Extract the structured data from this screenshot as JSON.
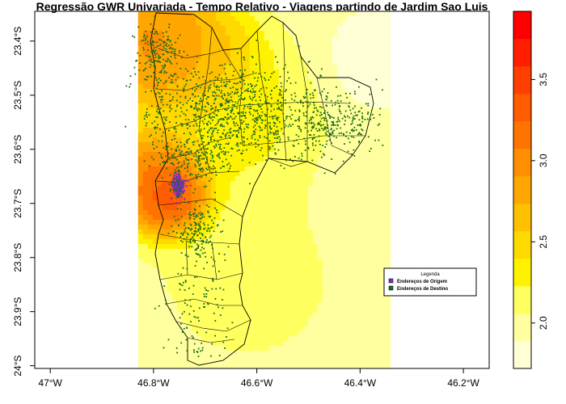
{
  "title": "Regressão GWR Univariada - Tempo Relativo - Viagens partindo de Jardim Sao Luis",
  "chart_data": {
    "type": "heatmap",
    "x_ticks": [
      {
        "value": -47.0,
        "label": "47°W"
      },
      {
        "value": -46.8,
        "label": "46.8°W"
      },
      {
        "value": -46.6,
        "label": "46.6°W"
      },
      {
        "value": -46.4,
        "label": "46.4°W"
      },
      {
        "value": -46.2,
        "label": "46.2°W"
      }
    ],
    "y_ticks": [
      {
        "value": -23.4,
        "label": "23.4°S"
      },
      {
        "value": -23.5,
        "label": "23.5°S"
      },
      {
        "value": -23.6,
        "label": "23.6°S"
      },
      {
        "value": -23.7,
        "label": "23.7°S"
      },
      {
        "value": -23.8,
        "label": "23.8°S"
      },
      {
        "value": -23.9,
        "label": "23.9°S"
      },
      {
        "value": -24.0,
        "label": "24°S"
      }
    ],
    "xlim": [
      -47.03,
      -46.15
    ],
    "ylim": [
      -24.005,
      -23.345
    ],
    "raster_extent": {
      "lon": [
        -46.83,
        -46.35
      ],
      "lat": [
        -24.005,
        -23.345
      ]
    },
    "colorbar": {
      "ticks": [
        2.0,
        2.5,
        3.0,
        3.5
      ],
      "range": [
        1.72,
        3.92
      ],
      "colors": [
        "#FFFFD5",
        "#FFFF9F",
        "#FFFF5F",
        "#FFF200",
        "#FFDA00",
        "#FFC000",
        "#FFA700",
        "#FF8F00",
        "#FF7400",
        "#FF5B00",
        "#FF3F00",
        "#FF1F00",
        "#FF0000"
      ]
    },
    "legend": {
      "title": "Legenda",
      "placement": "bottom-right",
      "entries": [
        {
          "label": "Endereços de Origem",
          "color": "#7B2FBE"
        },
        {
          "label": "Endereços de Destino",
          "color": "#1A6B1A"
        }
      ]
    },
    "hotspots": [
      {
        "lon": -46.76,
        "lat": -23.69,
        "value": 3.9,
        "spread": 0.055
      },
      {
        "lon": -46.79,
        "lat": -23.65,
        "value": 3.3,
        "spread": 0.07
      },
      {
        "lon": -46.79,
        "lat": -23.41,
        "value": 3.2,
        "spread": 0.09
      },
      {
        "lon": -46.7,
        "lat": -23.44,
        "value": 2.8,
        "spread": 0.08
      },
      {
        "lon": -46.62,
        "lat": -23.56,
        "value": 2.35,
        "spread": 0.12
      },
      {
        "lon": -46.62,
        "lat": -23.82,
        "value": 2.15,
        "spread": 0.14
      },
      {
        "lon": -46.42,
        "lat": -23.66,
        "value": 2.0,
        "spread": 0.1
      },
      {
        "lon": -46.38,
        "lat": -23.45,
        "value": 1.8,
        "spread": 0.08
      }
    ],
    "base_value": 1.95,
    "origin_cluster": {
      "lon": -46.752,
      "lat": -23.668,
      "rx": 0.012,
      "ry": 0.022,
      "count": 160
    },
    "destination_density": [
      {
        "lon": -46.65,
        "lat": -23.53,
        "rx": 0.15,
        "ry": 0.08,
        "count": 900
      },
      {
        "lon": -46.79,
        "lat": -23.42,
        "rx": 0.04,
        "ry": 0.05,
        "count": 180
      },
      {
        "lon": -46.45,
        "lat": -23.55,
        "rx": 0.08,
        "ry": 0.05,
        "count": 280
      },
      {
        "lon": -46.72,
        "lat": -23.62,
        "rx": 0.07,
        "ry": 0.04,
        "count": 200
      },
      {
        "lon": -46.71,
        "lat": -23.75,
        "rx": 0.04,
        "ry": 0.05,
        "count": 180
      },
      {
        "lon": -46.72,
        "lat": -23.86,
        "rx": 0.06,
        "ry": 0.08,
        "count": 90
      },
      {
        "lon": -46.7,
        "lat": -23.96,
        "rx": 0.05,
        "ry": 0.03,
        "count": 25
      }
    ]
  }
}
